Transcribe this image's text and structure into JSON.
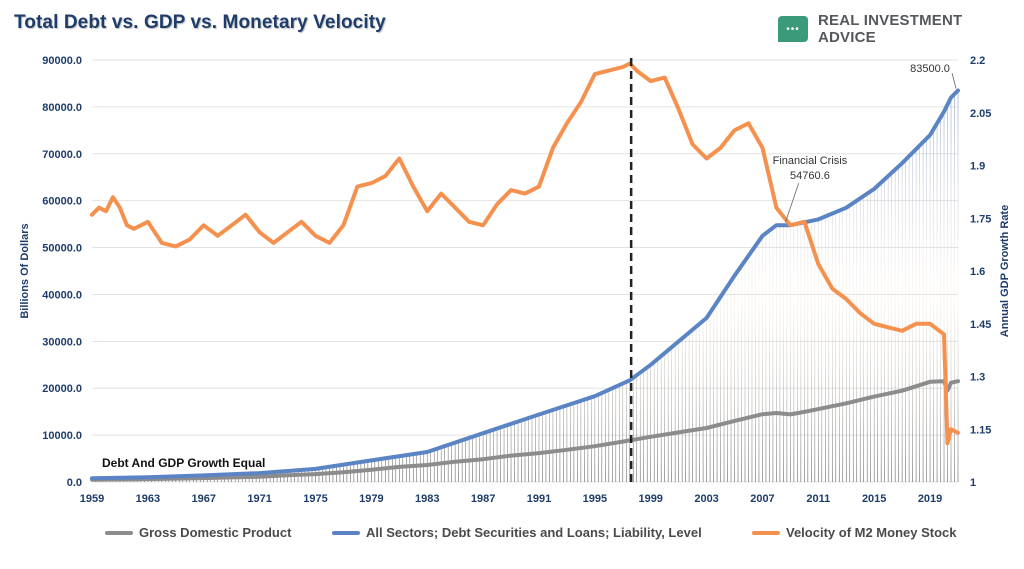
{
  "title": "Total Debt vs. GDP vs. Monetary Velocity",
  "brand": {
    "name": "REAL INVESTMENT ADVICE",
    "icon": "chat-bubble-icon",
    "color": "#3a9a7a"
  },
  "chart_data": {
    "type": "line",
    "title": "Total Debt vs. GDP vs. Monetary Velocity",
    "ylabel": "Billions Of Dollars",
    "y2label": "Annual GDP Growth Rate",
    "ylim": [
      0,
      90000
    ],
    "y2lim": [
      1,
      2.2
    ],
    "xlim": [
      1959,
      2021
    ],
    "x_ticks": [
      "1959",
      "1963",
      "1967",
      "1971",
      "1975",
      "1979",
      "1983",
      "1987",
      "1991",
      "1995",
      "1999",
      "2003",
      "2007",
      "2011",
      "2015",
      "2019"
    ],
    "y_ticks": [
      "0.0",
      "10000.0",
      "20000.0",
      "30000.0",
      "40000.0",
      "50000.0",
      "60000.0",
      "70000.0",
      "80000.0",
      "90000.0"
    ],
    "y2_ticks": [
      "1",
      "1.15",
      "1.3",
      "1.45",
      "1.6",
      "1.75",
      "1.9",
      "2.05",
      "2.2"
    ],
    "grid": true,
    "legend_position": "bottom",
    "series": [
      {
        "name": "Gross Domestic Product",
        "axis": "left",
        "color": "#8c8c8c",
        "x": [
          1959,
          1961,
          1963,
          1965,
          1967,
          1969,
          1971,
          1973,
          1975,
          1977,
          1979,
          1981,
          1983,
          1985,
          1987,
          1989,
          1991,
          1993,
          1995,
          1997,
          1999,
          2001,
          2003,
          2005,
          2007,
          2008,
          2009,
          2010,
          2011,
          2013,
          2015,
          2017,
          2019,
          2020,
          2020.25,
          2020.5,
          2021
        ],
        "values": [
          510,
          560,
          620,
          720,
          830,
          980,
          1130,
          1430,
          1690,
          2080,
          2630,
          3210,
          3630,
          4340,
          4870,
          5640,
          6160,
          6860,
          7640,
          8610,
          9630,
          10580,
          11510,
          13040,
          14450,
          14710,
          14420,
          14960,
          15540,
          16780,
          18220,
          19480,
          21380,
          21480,
          19520,
          21170,
          21500
        ]
      },
      {
        "name": "All Sectors; Debt Securities and Loans; Liability, Level",
        "axis": "left",
        "color": "#5a84c4",
        "x": [
          1959,
          1963,
          1967,
          1971,
          1975,
          1979,
          1983,
          1987,
          1991,
          1995,
          1997.5,
          1999,
          2003,
          2005,
          2007,
          2008,
          2009,
          2011,
          2013,
          2015,
          2017,
          2019,
          2020,
          2020.5,
          2021
        ],
        "values": [
          800,
          1000,
          1400,
          1900,
          2800,
          4600,
          6400,
          10400,
          14400,
          18300,
          21700,
          25000,
          35000,
          44000,
          52500,
          54760,
          54760,
          56000,
          58500,
          62500,
          68000,
          74000,
          79000,
          82000,
          83500
        ]
      },
      {
        "name": "Velocity of M2 Money Stock",
        "axis": "right",
        "color": "#f4914f",
        "x": [
          1959,
          1959.5,
          1960,
          1960.5,
          1961,
          1961.5,
          1962,
          1963,
          1964,
          1965,
          1966,
          1967,
          1968,
          1969,
          1970,
          1971,
          1972,
          1973,
          1974,
          1975,
          1976,
          1977,
          1978,
          1979,
          1980,
          1981,
          1981.5,
          1982,
          1983,
          1984,
          1985,
          1986,
          1987,
          1988,
          1989,
          1990,
          1991,
          1992,
          1993,
          1994,
          1995,
          1996,
          1997,
          1997.5,
          1998,
          1999,
          2000,
          2001,
          2002,
          2003,
          2004,
          2005,
          2006,
          2007,
          2008,
          2009,
          2010,
          2011,
          2012,
          2013,
          2014,
          2015,
          2016,
          2017,
          2018,
          2019,
          2020,
          2020.25,
          2020.5,
          2021
        ],
        "values": [
          1.76,
          1.78,
          1.77,
          1.81,
          1.78,
          1.73,
          1.72,
          1.74,
          1.68,
          1.67,
          1.69,
          1.73,
          1.7,
          1.73,
          1.76,
          1.71,
          1.68,
          1.71,
          1.74,
          1.7,
          1.68,
          1.73,
          1.84,
          1.85,
          1.87,
          1.92,
          1.88,
          1.84,
          1.77,
          1.82,
          1.78,
          1.74,
          1.73,
          1.79,
          1.83,
          1.82,
          1.84,
          1.95,
          2.02,
          2.08,
          2.16,
          2.17,
          2.18,
          2.19,
          2.17,
          2.14,
          2.15,
          2.06,
          1.96,
          1.92,
          1.95,
          2.0,
          2.02,
          1.95,
          1.78,
          1.73,
          1.74,
          1.62,
          1.55,
          1.52,
          1.48,
          1.45,
          1.44,
          1.43,
          1.45,
          1.45,
          1.42,
          1.11,
          1.15,
          1.14
        ]
      }
    ],
    "vertical_marker": {
      "x": 1997.6,
      "style": "dashed"
    },
    "annotations": [
      {
        "text": "83500.0",
        "x": 2021,
        "y": 83500
      },
      {
        "text": "Financial Crisis",
        "x": 2008.5,
        "y": 54760
      },
      {
        "text": "54760.6",
        "x": 2008.5,
        "y": 54760
      },
      {
        "text": "Debt And GDP Growth Equal",
        "x": 1959,
        "y": 1000
      }
    ]
  }
}
